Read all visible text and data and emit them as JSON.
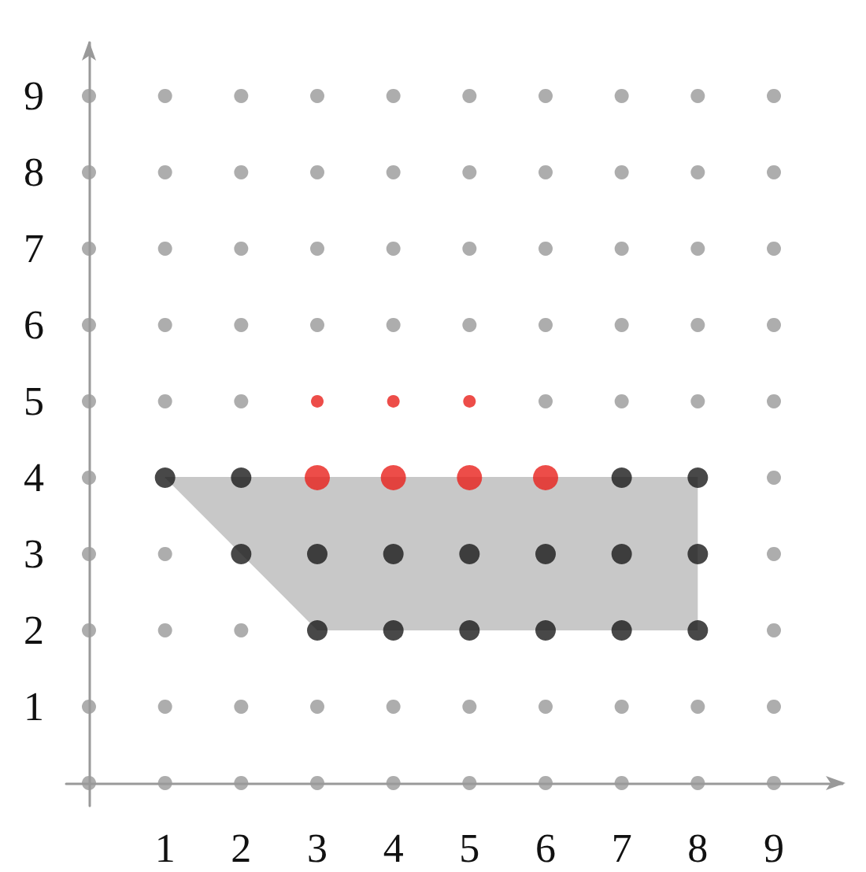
{
  "chart_data": {
    "type": "scatter",
    "xlim": [
      -0.3,
      9.9
    ],
    "ylim": [
      -0.3,
      9.7
    ],
    "xticks": [
      1,
      2,
      3,
      4,
      5,
      6,
      7,
      8,
      9
    ],
    "yticks": [
      1,
      2,
      3,
      4,
      5,
      6,
      7,
      8,
      9
    ],
    "grid": false,
    "marker": "circle",
    "series": [
      {
        "type": "line",
        "marker": "none",
        "color": "#c8c8c8",
        "x": [
          1,
          3,
          8
        ],
        "values": [
          4,
          4,
          4
        ],
        "lower": [
          4,
          2,
          2
        ],
        "upper": [
          4,
          4,
          4
        ]
      },
      {
        "color": "#999999",
        "x": [
          0,
          1,
          2,
          3,
          4,
          5,
          6,
          7,
          8,
          9,
          0,
          1,
          2,
          3,
          4,
          5,
          6,
          7,
          8,
          9,
          0,
          1,
          2,
          9,
          0,
          1,
          9,
          0,
          9,
          0,
          1,
          2,
          6,
          7,
          8,
          9,
          0,
          1,
          2,
          3,
          4,
          5,
          6,
          7,
          8,
          9,
          0,
          1,
          2,
          3,
          4,
          5,
          6,
          7,
          8,
          9,
          0,
          1,
          2,
          3,
          4,
          5,
          6,
          7,
          8,
          9,
          0,
          1,
          2,
          3,
          4,
          5,
          6,
          7,
          8,
          9
        ],
        "values": [
          0,
          0,
          0,
          0,
          0,
          0,
          0,
          0,
          0,
          0,
          1,
          1,
          1,
          1,
          1,
          1,
          1,
          1,
          1,
          1,
          2,
          2,
          2,
          2,
          3,
          3,
          3,
          4,
          4,
          5,
          5,
          5,
          5,
          5,
          5,
          5,
          6,
          6,
          6,
          6,
          6,
          6,
          6,
          6,
          6,
          6,
          7,
          7,
          7,
          7,
          7,
          7,
          7,
          7,
          7,
          7,
          8,
          8,
          8,
          8,
          8,
          8,
          8,
          8,
          8,
          8,
          9,
          9,
          9,
          9,
          9,
          9,
          9,
          9,
          9,
          9
        ]
      },
      {
        "color": "#1a1a1a",
        "x": [
          1,
          2,
          7,
          8,
          2,
          3,
          4,
          5,
          6,
          7,
          8,
          3,
          4,
          5,
          6,
          7,
          8
        ],
        "values": [
          4,
          4,
          4,
          4,
          3,
          3,
          3,
          3,
          3,
          3,
          3,
          2,
          2,
          2,
          2,
          2,
          2
        ]
      },
      {
        "color": "#e8201c",
        "x": [
          3,
          4,
          5,
          6
        ],
        "values": [
          4,
          4,
          4,
          4
        ]
      },
      {
        "color": "#e8201c",
        "x": [
          3,
          4,
          5
        ],
        "values": [
          5,
          5,
          5
        ]
      }
    ]
  }
}
